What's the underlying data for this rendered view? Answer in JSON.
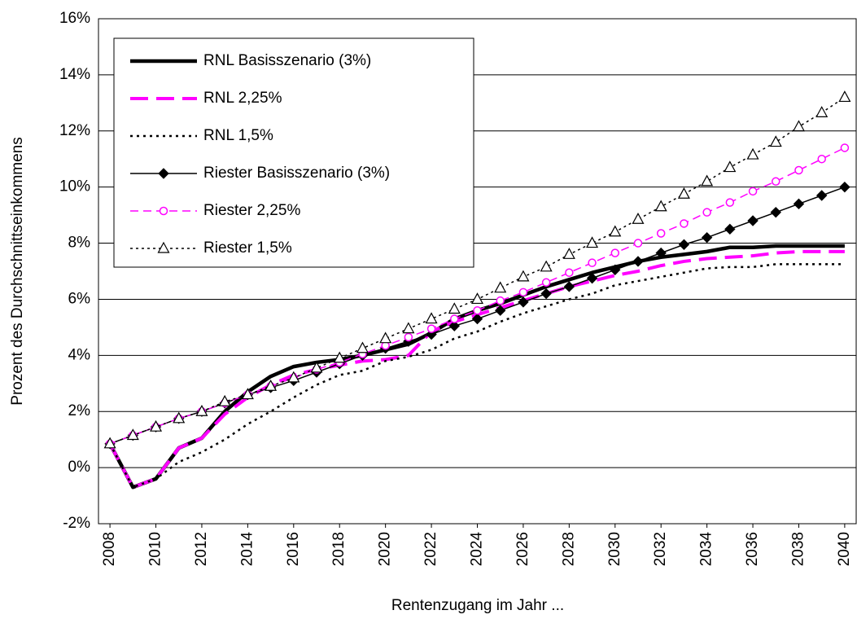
{
  "chart_data": {
    "type": "line",
    "x_label": "Rentenzugang im Jahr ...",
    "y_label": "Prozent des Durchschnittseinkommens",
    "x": [
      2008,
      2009,
      2010,
      2011,
      2012,
      2013,
      2014,
      2015,
      2016,
      2017,
      2018,
      2019,
      2020,
      2021,
      2022,
      2023,
      2024,
      2025,
      2026,
      2027,
      2028,
      2029,
      2030,
      2031,
      2032,
      2033,
      2034,
      2035,
      2036,
      2037,
      2038,
      2039,
      2040
    ],
    "xlim": [
      2007.5,
      2040.5
    ],
    "xticks": [
      2008,
      2010,
      2012,
      2014,
      2016,
      2018,
      2020,
      2022,
      2024,
      2026,
      2028,
      2030,
      2032,
      2034,
      2036,
      2038,
      2040
    ],
    "ylim": [
      -2,
      16
    ],
    "yticks": [
      {
        "value": -2,
        "label": "-2%"
      },
      {
        "value": 0,
        "label": "0%"
      },
      {
        "value": 2,
        "label": "2%"
      },
      {
        "value": 4,
        "label": "4%"
      },
      {
        "value": 6,
        "label": "6%"
      },
      {
        "value": 8,
        "label": "8%"
      },
      {
        "value": 10,
        "label": "10%"
      },
      {
        "value": 12,
        "label": "12%"
      },
      {
        "value": 14,
        "label": "14%"
      },
      {
        "value": 16,
        "label": "16%"
      }
    ],
    "grid": true,
    "legend": "upper left",
    "series": [
      {
        "name": "RNL Basisszenario (3%)",
        "color": "#000000",
        "line_style": "solid",
        "line_width": 4.5,
        "marker": "none",
        "values": [
          0.85,
          -0.7,
          -0.4,
          0.7,
          1.05,
          2.0,
          2.7,
          3.25,
          3.6,
          3.75,
          3.85,
          4.0,
          4.2,
          4.4,
          4.8,
          5.3,
          5.6,
          5.85,
          6.15,
          6.45,
          6.7,
          6.95,
          7.15,
          7.35,
          7.5,
          7.6,
          7.7,
          7.85,
          7.85,
          7.9,
          7.9,
          7.9,
          7.9
        ]
      },
      {
        "name": "RNL 2,25%",
        "color": "#ff00ff",
        "line_style": "dashed",
        "line_width": 4,
        "marker": "none",
        "values": [
          0.85,
          -0.7,
          -0.4,
          0.7,
          1.05,
          1.9,
          2.5,
          2.95,
          3.3,
          3.5,
          3.65,
          3.8,
          3.85,
          4.0,
          4.85,
          5.2,
          5.45,
          5.7,
          5.95,
          6.2,
          6.45,
          6.65,
          6.85,
          7.0,
          7.2,
          7.35,
          7.45,
          7.5,
          7.55,
          7.65,
          7.7,
          7.7,
          7.7
        ]
      },
      {
        "name": "RNL 1,5%",
        "color": "#000000",
        "line_style": "dotted",
        "line_width": 2.5,
        "marker": "none",
        "values": [
          0.85,
          -0.7,
          -0.4,
          0.2,
          0.55,
          1.0,
          1.55,
          2.0,
          2.5,
          2.95,
          3.3,
          3.45,
          3.8,
          3.95,
          4.2,
          4.6,
          4.85,
          5.2,
          5.5,
          5.75,
          6.0,
          6.2,
          6.5,
          6.65,
          6.8,
          6.95,
          7.1,
          7.15,
          7.15,
          7.25,
          7.25,
          7.25,
          7.25
        ]
      },
      {
        "name": "Riester Basisszenario (3%)",
        "color": "#000000",
        "line_style": "solid",
        "line_width": 1.5,
        "marker": "diamond",
        "values": [
          0.85,
          1.15,
          1.45,
          1.75,
          2.0,
          2.3,
          2.6,
          2.85,
          3.1,
          3.4,
          3.7,
          4.0,
          4.25,
          4.5,
          4.75,
          5.05,
          5.3,
          5.6,
          5.9,
          6.2,
          6.45,
          6.75,
          7.05,
          7.35,
          7.65,
          7.95,
          8.2,
          8.5,
          8.8,
          9.1,
          9.4,
          9.7,
          10.0
        ]
      },
      {
        "name": "Riester 2,25%",
        "color": "#ff00ff",
        "line_style": "dashed",
        "line_width": 1.5,
        "marker": "circle",
        "values": [
          0.85,
          1.15,
          1.45,
          1.75,
          2.0,
          2.3,
          2.6,
          2.9,
          3.2,
          3.5,
          3.75,
          4.05,
          4.35,
          4.65,
          4.95,
          5.3,
          5.6,
          5.95,
          6.25,
          6.6,
          6.95,
          7.3,
          7.65,
          8.0,
          8.35,
          8.7,
          9.1,
          9.45,
          9.85,
          10.2,
          10.6,
          11.0,
          11.4
        ]
      },
      {
        "name": "Riester 1,5%",
        "color": "#000000",
        "line_style": "dotted",
        "line_width": 1.5,
        "marker": "triangle",
        "values": [
          0.85,
          1.15,
          1.45,
          1.75,
          2.0,
          2.35,
          2.6,
          2.9,
          3.2,
          3.55,
          3.9,
          4.25,
          4.6,
          4.95,
          5.3,
          5.65,
          6.0,
          6.4,
          6.8,
          7.15,
          7.6,
          8.0,
          8.4,
          8.85,
          9.3,
          9.75,
          10.2,
          10.7,
          11.15,
          11.6,
          12.15,
          12.65,
          13.2
        ]
      }
    ]
  }
}
